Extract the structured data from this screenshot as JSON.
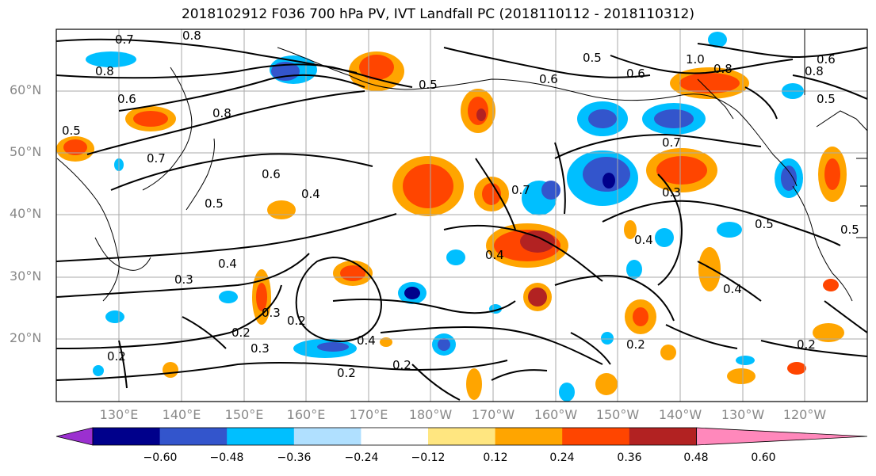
{
  "title": "2018102912 F036 700 hPa PV, IVT Landfall PC (2018110112 - 2018110312)",
  "latitude_labels": [
    "60°N",
    "50°N",
    "40°N",
    "30°N",
    "20°N"
  ],
  "longitude_labels": [
    "130°E",
    "140°E",
    "150°E",
    "160°E",
    "170°E",
    "180°W",
    "170°W",
    "160°W",
    "150°W",
    "140°W",
    "130°W",
    "120°W"
  ],
  "contour_labels": [
    "0.8",
    "0.7",
    "0.8",
    "0.6",
    "0.8",
    "0.5",
    "0.7",
    "0.6",
    "0.5",
    "0.4",
    "0.3",
    "0.4",
    "0.3",
    "0.2",
    "0.2",
    "0.3",
    "0.2",
    "0.4",
    "0.2",
    "0.2",
    "0.4",
    "0.5",
    "0.6",
    "0.5",
    "0.7",
    "0.3",
    "0.4",
    "0.5",
    "0.4",
    "0.2",
    "0.2",
    "0.6",
    "1.0",
    "0.8",
    "0.6",
    "0.5",
    "0.8",
    "0.7",
    "0.5"
  ],
  "colorbar": {
    "tick_labels": [
      "−0.60",
      "−0.48",
      "−0.36",
      "−0.24",
      "−0.12",
      "0.12",
      "0.24",
      "0.36",
      "0.48",
      "0.60"
    ],
    "colors": [
      "#9b30d0",
      "#00008b",
      "#3355cc",
      "#00bfff",
      "#b0e0ff",
      "#ffffff",
      "#ffe680",
      "#ffa500",
      "#ff4500",
      "#b22222",
      "#ff88bb"
    ]
  },
  "chart_data": {
    "type": "heatmap",
    "variable": "700 hPa PV, IVT Landfall PC",
    "levels": [
      -0.6,
      -0.48,
      -0.36,
      -0.24,
      -0.12,
      0.12,
      0.24,
      0.36,
      0.48,
      0.6
    ],
    "lat_ticks": [
      60,
      50,
      40,
      30,
      20
    ],
    "lon_ticks": [
      "130°E",
      "140°E",
      "150°E",
      "160°E",
      "170°E",
      "180°W",
      "170°W",
      "160°W",
      "150°W",
      "140°W",
      "130°W",
      "120°W"
    ],
    "grid": true
  }
}
